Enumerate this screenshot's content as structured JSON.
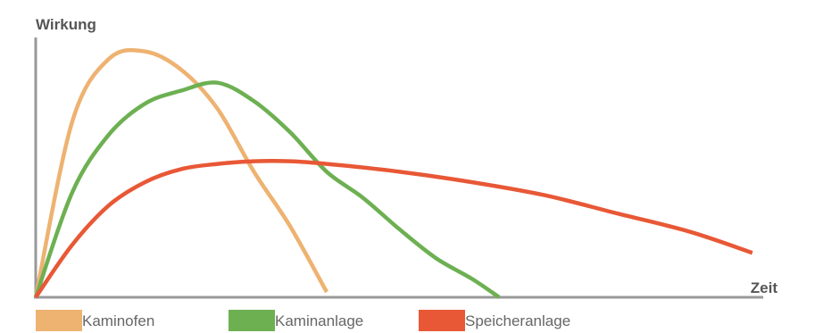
{
  "chart_data": {
    "type": "line",
    "xlabel": "Zeit",
    "ylabel": "Wirkung",
    "xlim": [
      0,
      100
    ],
    "ylim": [
      0,
      100
    ],
    "grid": false,
    "legend_position": "bottom",
    "series": [
      {
        "name": "Kaminofen",
        "color": "#EEB271",
        "x": [
          0,
          5,
          10,
          15,
          20,
          25,
          30,
          35,
          40
        ],
        "y": [
          0,
          67,
          91,
          94,
          87,
          72,
          48,
          27,
          2
        ]
      },
      {
        "name": "Kaminanlage",
        "color": "#6DB052",
        "x": [
          0,
          5,
          10,
          15,
          20,
          25,
          30,
          35,
          40,
          45,
          50,
          55,
          60,
          63.7
        ],
        "y": [
          0,
          40,
          62,
          74,
          79,
          82,
          75,
          63,
          48,
          38,
          26,
          15,
          7,
          0
        ]
      },
      {
        "name": "Speicheranlage",
        "color": "#E85836",
        "x": [
          0,
          5,
          10,
          15,
          20,
          25,
          30,
          35,
          40,
          50,
          60,
          70,
          80,
          90,
          98.5
        ],
        "y": [
          0,
          20,
          35,
          44,
          49,
          51,
          52,
          52,
          51,
          48,
          44,
          39,
          32,
          25,
          17
        ]
      }
    ]
  }
}
